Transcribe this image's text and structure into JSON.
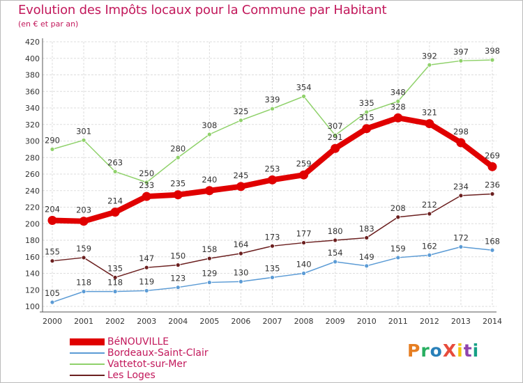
{
  "header": {
    "title": "Evolution des Impôts locaux pour la Commune par Habitant",
    "subtitle": "(en € et par an)"
  },
  "logo": {
    "text": "ProXiti",
    "colors": [
      "#e67e22",
      "#27ae60",
      "#2980b9",
      "#e74c3c",
      "#f1c40f",
      "#8e44ad",
      "#16a085"
    ]
  },
  "chart_data": {
    "type": "line",
    "x": [
      "2000",
      "2001",
      "2002",
      "2003",
      "2004",
      "2005",
      "2006",
      "2007",
      "2008",
      "2009",
      "2010",
      "2011",
      "2012",
      "2013",
      "2014"
    ],
    "ylim": [
      100,
      420
    ],
    "yticks": [
      100,
      120,
      140,
      160,
      180,
      200,
      220,
      240,
      260,
      280,
      300,
      320,
      340,
      360,
      380,
      400,
      420
    ],
    "grid": true,
    "legend_position": "bottom-left",
    "series": [
      {
        "name": "BéNOUVILLE",
        "color": "#e00000",
        "values": [
          204,
          203,
          214,
          233,
          235,
          240,
          245,
          253,
          259,
          291,
          315,
          328,
          321,
          298,
          269
        ]
      },
      {
        "name": "Bordeaux-Saint-Clair",
        "color": "#5b9bd5",
        "values": [
          105,
          118,
          118,
          119,
          123,
          129,
          130,
          135,
          140,
          154,
          149,
          159,
          162,
          172,
          168
        ]
      },
      {
        "name": "Vattetot-sur-Mer",
        "color": "#8fd16a",
        "values": [
          290,
          301,
          263,
          250,
          280,
          308,
          325,
          339,
          354,
          307,
          335,
          348,
          392,
          397,
          398
        ]
      },
      {
        "name": "Les Loges",
        "color": "#6b1f1f",
        "values": [
          155,
          159,
          135,
          147,
          150,
          158,
          164,
          173,
          177,
          180,
          183,
          208,
          212,
          234,
          236
        ]
      }
    ]
  }
}
